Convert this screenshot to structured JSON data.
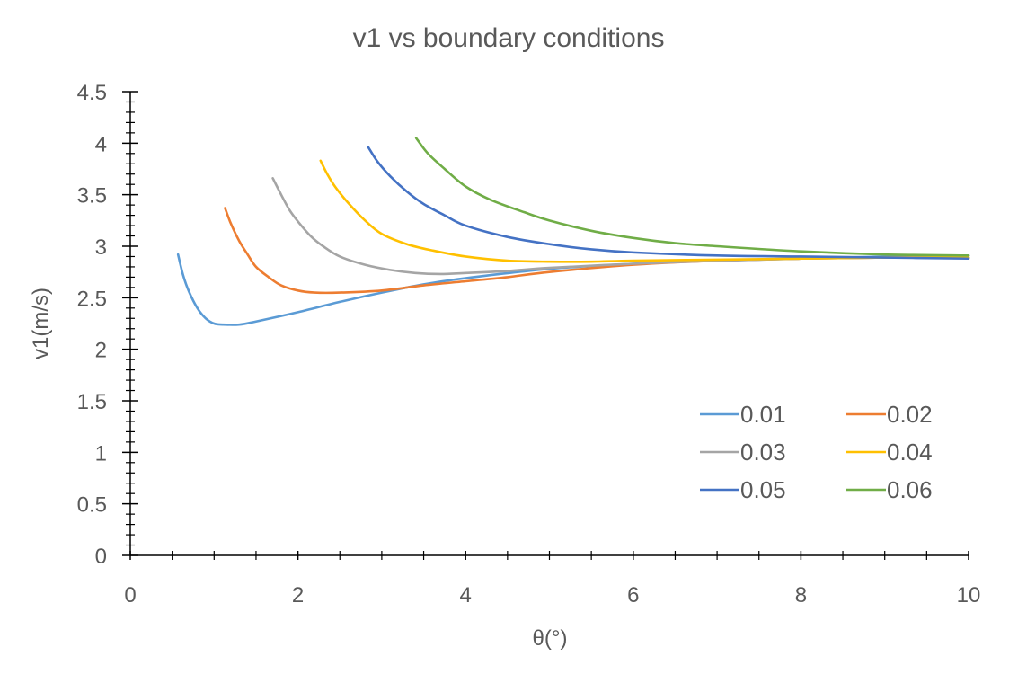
{
  "chart_data": {
    "type": "line",
    "title": "v1 vs boundary conditions",
    "xlabel": "θ(°)",
    "ylabel": "v1(m/s)",
    "xlim": [
      0,
      10
    ],
    "ylim": [
      0,
      4.5
    ],
    "x_ticks": [
      "0",
      "2",
      "4",
      "6",
      "8",
      "10"
    ],
    "y_ticks": [
      "0",
      "0.5",
      "1",
      "1.5",
      "2",
      "2.5",
      "3",
      "3.5",
      "4",
      "4.5"
    ],
    "grid": false,
    "legend_position": "bottom-right",
    "series": [
      {
        "name": "0.01",
        "color": "#5B9BD5",
        "points": [
          [
            0.57,
            2.92
          ],
          [
            0.63,
            2.72
          ],
          [
            0.7,
            2.56
          ],
          [
            0.8,
            2.4
          ],
          [
            0.9,
            2.3
          ],
          [
            1.0,
            2.25
          ],
          [
            1.1,
            2.24
          ],
          [
            1.3,
            2.24
          ],
          [
            1.5,
            2.27
          ],
          [
            2.0,
            2.36
          ],
          [
            2.5,
            2.46
          ],
          [
            3.0,
            2.55
          ],
          [
            3.5,
            2.63
          ],
          [
            4.0,
            2.69
          ],
          [
            5.0,
            2.78
          ],
          [
            6.0,
            2.83
          ],
          [
            7.0,
            2.86
          ],
          [
            8.0,
            2.88
          ],
          [
            9.0,
            2.9
          ],
          [
            10.0,
            2.91
          ]
        ]
      },
      {
        "name": "0.02",
        "color": "#ED7D31",
        "points": [
          [
            1.13,
            3.37
          ],
          [
            1.2,
            3.22
          ],
          [
            1.3,
            3.05
          ],
          [
            1.4,
            2.92
          ],
          [
            1.5,
            2.8
          ],
          [
            1.65,
            2.7
          ],
          [
            1.8,
            2.62
          ],
          [
            2.0,
            2.57
          ],
          [
            2.2,
            2.55
          ],
          [
            2.5,
            2.55
          ],
          [
            3.0,
            2.57
          ],
          [
            3.5,
            2.62
          ],
          [
            4.0,
            2.66
          ],
          [
            4.5,
            2.7
          ],
          [
            5.0,
            2.75
          ],
          [
            6.0,
            2.82
          ],
          [
            7.0,
            2.86
          ],
          [
            8.0,
            2.88
          ],
          [
            9.0,
            2.89
          ],
          [
            10.0,
            2.89
          ]
        ]
      },
      {
        "name": "0.03",
        "color": "#A5A5A5",
        "points": [
          [
            1.7,
            3.66
          ],
          [
            1.8,
            3.5
          ],
          [
            1.9,
            3.35
          ],
          [
            2.0,
            3.24
          ],
          [
            2.15,
            3.1
          ],
          [
            2.3,
            3.0
          ],
          [
            2.5,
            2.9
          ],
          [
            2.8,
            2.82
          ],
          [
            3.1,
            2.77
          ],
          [
            3.4,
            2.74
          ],
          [
            3.7,
            2.73
          ],
          [
            4.0,
            2.74
          ],
          [
            4.5,
            2.76
          ],
          [
            5.0,
            2.79
          ],
          [
            6.0,
            2.83
          ],
          [
            7.0,
            2.86
          ],
          [
            8.0,
            2.88
          ],
          [
            9.0,
            2.89
          ],
          [
            10.0,
            2.89
          ]
        ]
      },
      {
        "name": "0.04",
        "color": "#FFC000",
        "points": [
          [
            2.27,
            3.83
          ],
          [
            2.35,
            3.7
          ],
          [
            2.45,
            3.57
          ],
          [
            2.6,
            3.42
          ],
          [
            2.8,
            3.25
          ],
          [
            3.0,
            3.12
          ],
          [
            3.3,
            3.02
          ],
          [
            3.6,
            2.96
          ],
          [
            4.0,
            2.9
          ],
          [
            4.5,
            2.86
          ],
          [
            5.0,
            2.85
          ],
          [
            5.5,
            2.85
          ],
          [
            6.0,
            2.86
          ],
          [
            7.0,
            2.87
          ],
          [
            8.0,
            2.88
          ],
          [
            9.0,
            2.89
          ],
          [
            10.0,
            2.89
          ]
        ]
      },
      {
        "name": "0.05",
        "color": "#4472C4",
        "points": [
          [
            2.84,
            3.96
          ],
          [
            2.95,
            3.82
          ],
          [
            3.1,
            3.68
          ],
          [
            3.3,
            3.53
          ],
          [
            3.5,
            3.41
          ],
          [
            3.75,
            3.3
          ],
          [
            4.0,
            3.2
          ],
          [
            4.5,
            3.09
          ],
          [
            5.0,
            3.02
          ],
          [
            5.5,
            2.97
          ],
          [
            6.0,
            2.94
          ],
          [
            7.0,
            2.91
          ],
          [
            8.0,
            2.9
          ],
          [
            9.0,
            2.89
          ],
          [
            10.0,
            2.88
          ]
        ]
      },
      {
        "name": "0.06",
        "color": "#70AD47",
        "points": [
          [
            3.41,
            4.05
          ],
          [
            3.55,
            3.9
          ],
          [
            3.75,
            3.75
          ],
          [
            4.0,
            3.58
          ],
          [
            4.3,
            3.45
          ],
          [
            4.7,
            3.33
          ],
          [
            5.0,
            3.25
          ],
          [
            5.5,
            3.15
          ],
          [
            6.0,
            3.08
          ],
          [
            6.5,
            3.03
          ],
          [
            7.0,
            3.0
          ],
          [
            8.0,
            2.95
          ],
          [
            9.0,
            2.92
          ],
          [
            10.0,
            2.91
          ]
        ]
      }
    ]
  }
}
